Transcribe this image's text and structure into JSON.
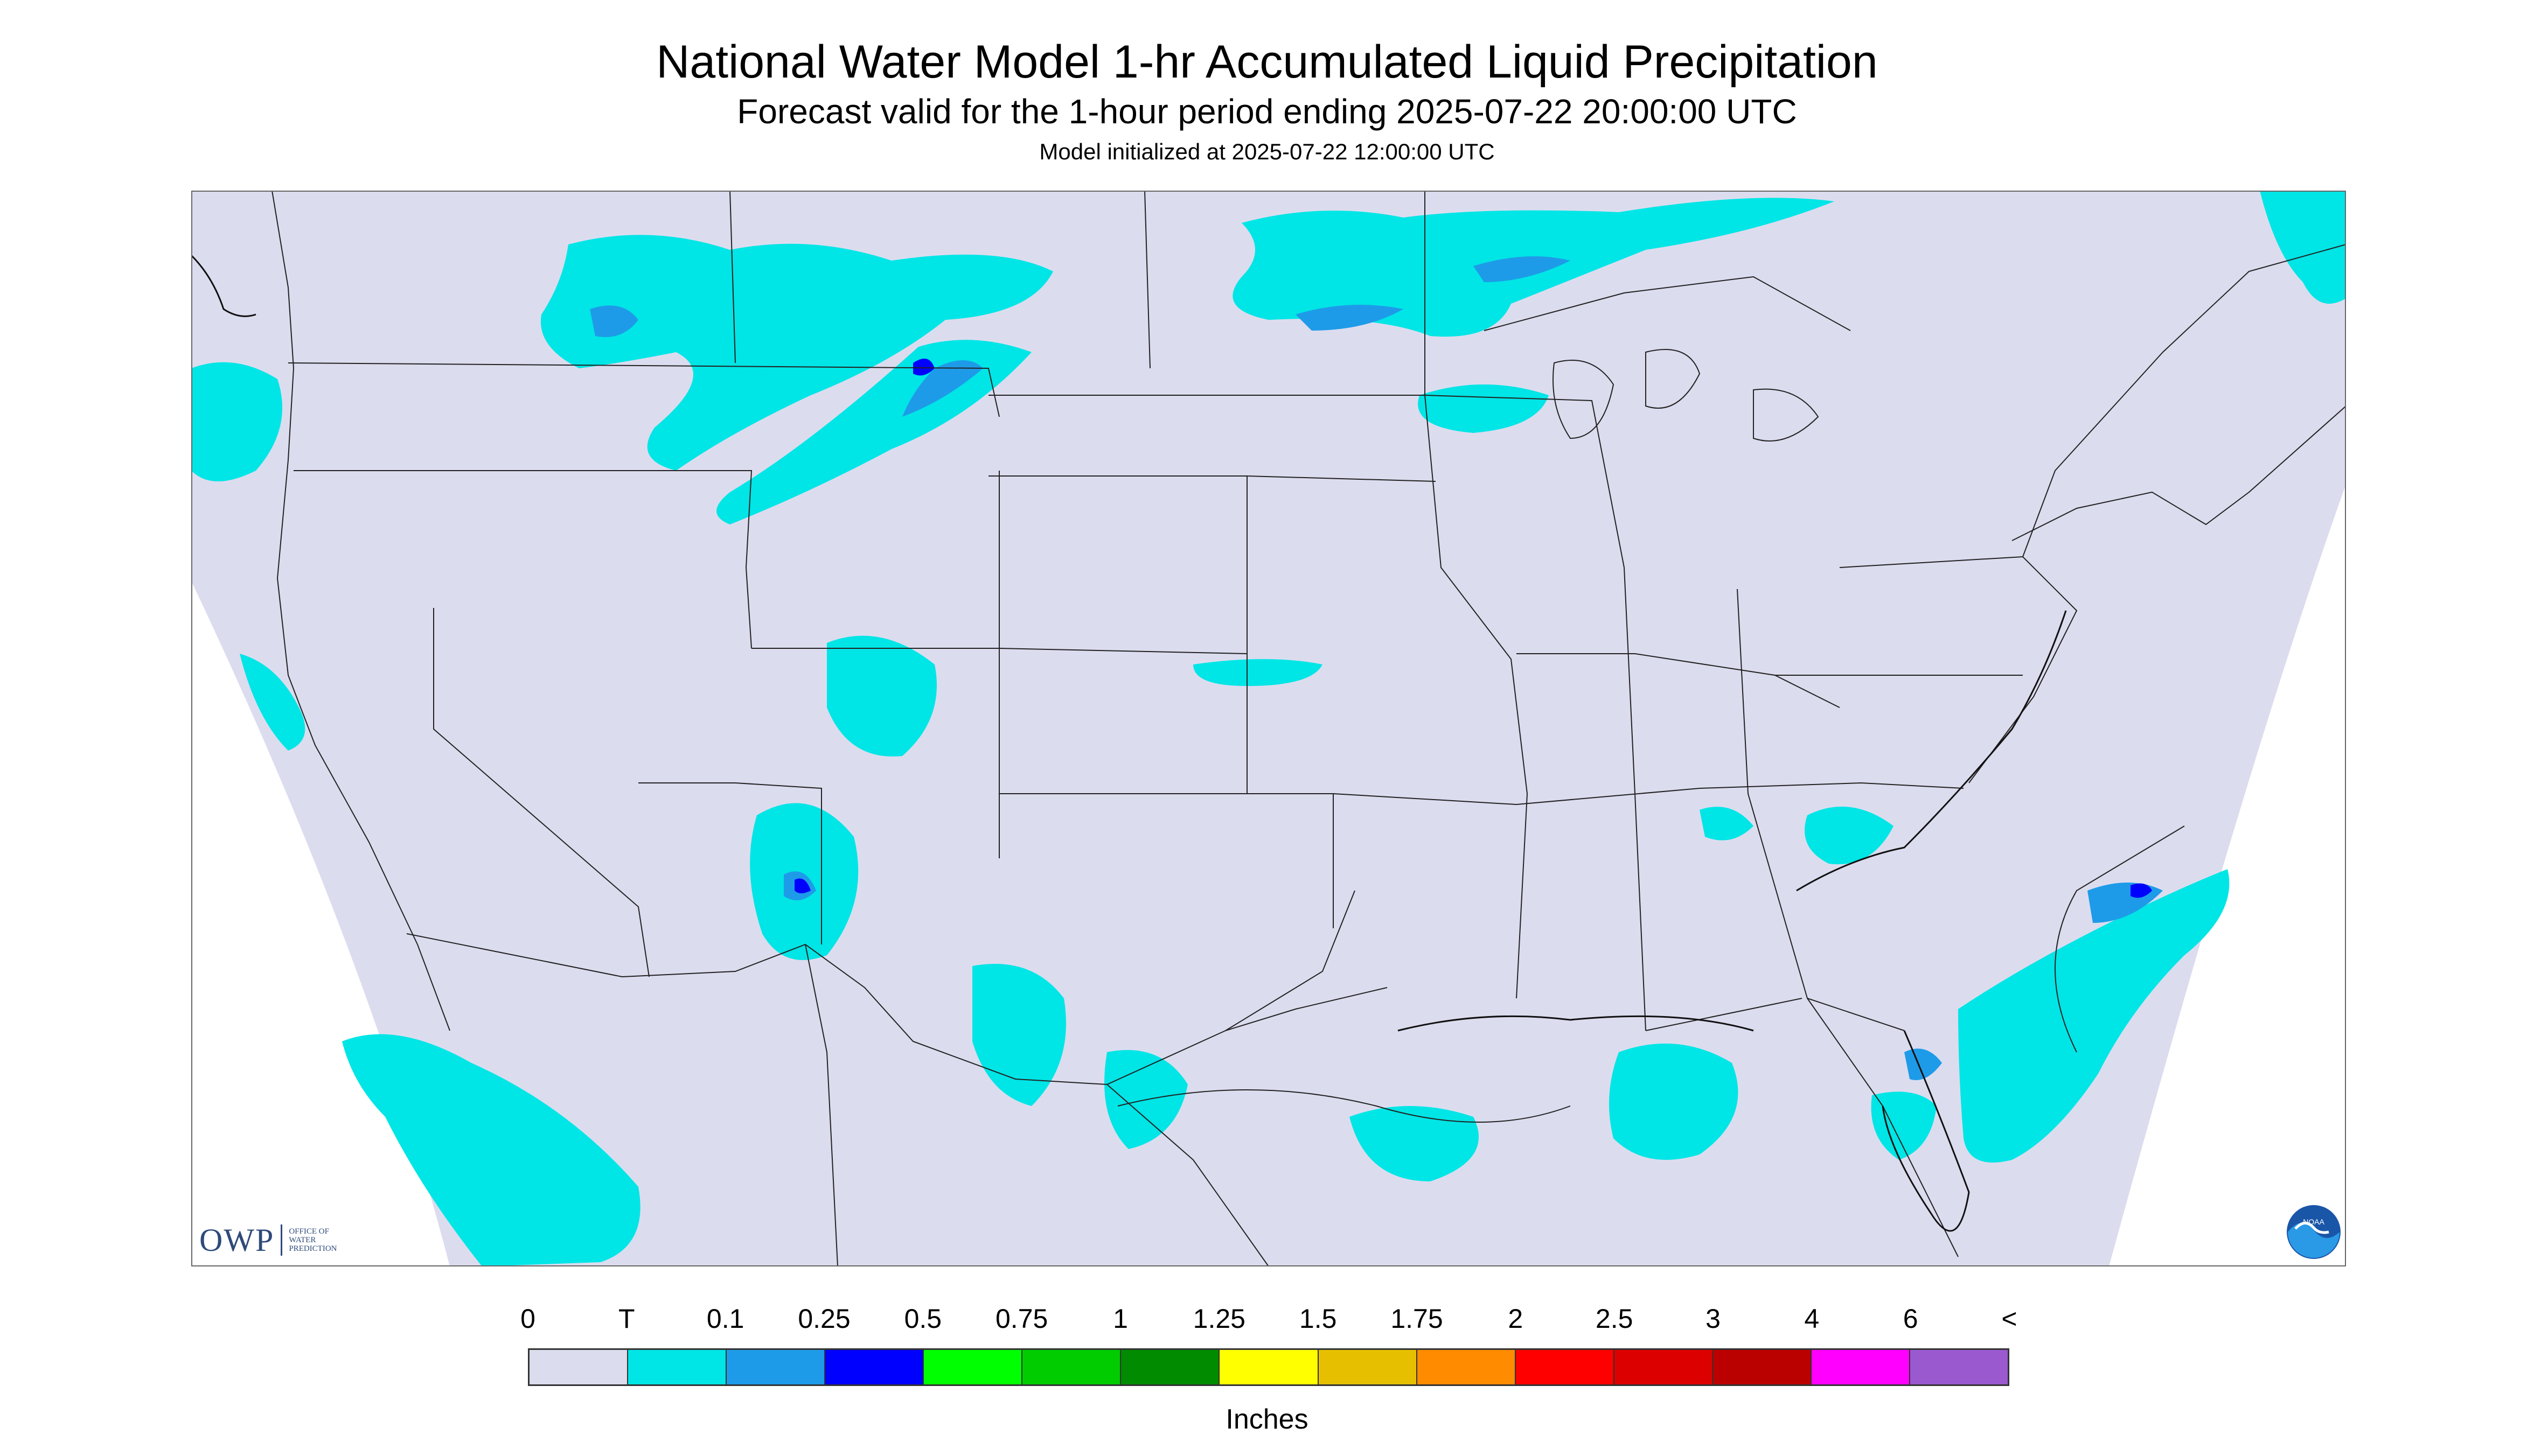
{
  "title": "National Water Model 1-hr Accumulated Liquid Precipitation",
  "subtitle": "Forecast valid for the 1-hour period ending 2025-07-22 20:00:00 UTC",
  "init_line": "Model initialized at 2025-07-22 12:00:00 UTC",
  "colors": {
    "background": "#dcdcef",
    "outside_domain": "#ffffff",
    "borders": "#222222",
    "precip_light": "#00e5e5",
    "precip_mid": "#1e9be8",
    "precip_heavy": "#0000ff"
  },
  "legend": {
    "tick_labels": [
      "0",
      "T",
      "0.1",
      "0.25",
      "0.5",
      "0.75",
      "1",
      "1.25",
      "1.5",
      "1.75",
      "2",
      "2.5",
      "3",
      "4",
      "6",
      "<"
    ],
    "colors": [
      "#dcdcef",
      "#00e5e5",
      "#1e9be8",
      "#0000ff",
      "#00ff00",
      "#00cc00",
      "#008b00",
      "#ffff00",
      "#e6bf00",
      "#ff8c00",
      "#ff0000",
      "#dd0000",
      "#bb0000",
      "#ff00ff",
      "#9b59d0"
    ],
    "units": "Inches"
  },
  "logos": {
    "owp_text": "OWP",
    "owp_sub": [
      "OFFICE OF",
      "WATER",
      "PREDICTION"
    ],
    "noaa_text": "NOAA"
  }
}
